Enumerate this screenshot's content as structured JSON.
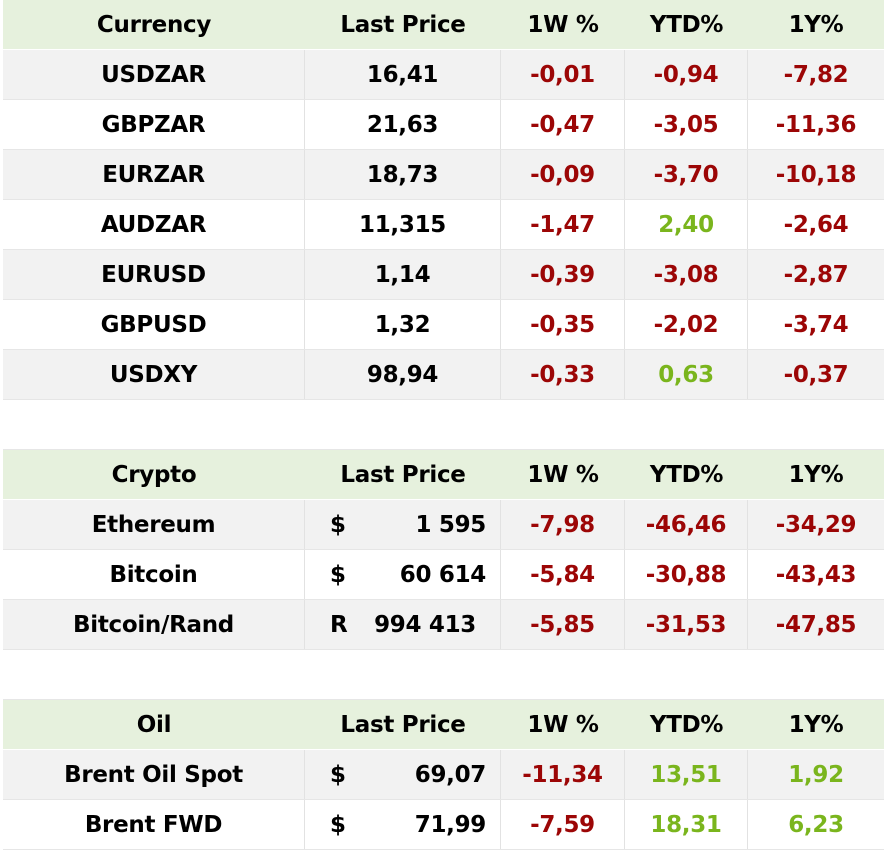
{
  "colors": {
    "header_bg": "#e6f1dd",
    "negative": "#9c0606",
    "positive": "#7ab51d",
    "row_alt": "#f2f2f2"
  },
  "currency": {
    "headers": [
      "Currency",
      "Last Price",
      "1W %",
      "YTD%",
      "1Y%"
    ],
    "rows": [
      {
        "name": "USDZAR",
        "price": "16,41",
        "w1": "-0,01",
        "ytd": "-0,94",
        "y1": "-7,82"
      },
      {
        "name": "GBPZAR",
        "price": "21,63",
        "w1": "-0,47",
        "ytd": "-3,05",
        "y1": "-11,36"
      },
      {
        "name": "EURZAR",
        "price": "18,73",
        "w1": "-0,09",
        "ytd": "-3,70",
        "y1": "-10,18"
      },
      {
        "name": "AUDZAR",
        "price": "11,315",
        "w1": "-1,47",
        "ytd": "2,40",
        "y1": "-2,64"
      },
      {
        "name": "EURUSD",
        "price": "1,14",
        "w1": "-0,39",
        "ytd": "-3,08",
        "y1": "-2,87"
      },
      {
        "name": "GBPUSD",
        "price": "1,32",
        "w1": "-0,35",
        "ytd": "-2,02",
        "y1": "-3,74"
      },
      {
        "name": "USDXY",
        "price": "98,94",
        "w1": "-0,33",
        "ytd": "0,63",
        "y1": "-0,37"
      }
    ]
  },
  "crypto": {
    "headers": [
      "Crypto",
      "Last Price",
      "1W %",
      "YTD%",
      "1Y%"
    ],
    "rows": [
      {
        "name": "Ethereum",
        "cur": "$",
        "price": "1 595",
        "w1": "-7,98",
        "ytd": "-46,46",
        "y1": "-34,29"
      },
      {
        "name": "Bitcoin",
        "cur": "$",
        "price": "60 614",
        "w1": "-5,84",
        "ytd": "-30,88",
        "y1": "-43,43"
      },
      {
        "name": "Bitcoin/Rand",
        "cur": "R",
        "price": "994 413",
        "w1": "-5,85",
        "ytd": "-31,53",
        "y1": "-47,85"
      }
    ]
  },
  "oil": {
    "headers": [
      "Oil",
      "Last Price",
      "1W %",
      "YTD%",
      "1Y%"
    ],
    "rows": [
      {
        "name": "Brent Oil Spot",
        "cur": "$",
        "price": "69,07",
        "w1": "-11,34",
        "ytd": "13,51",
        "y1": "1,92"
      },
      {
        "name": "Brent FWD",
        "cur": "$",
        "price": "71,99",
        "w1": "-7,59",
        "ytd": "18,31",
        "y1": "6,23"
      }
    ]
  }
}
